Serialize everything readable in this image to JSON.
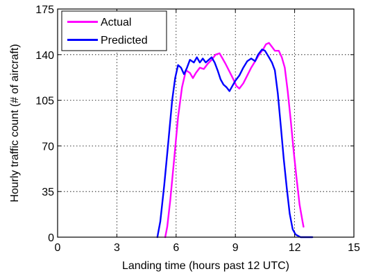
{
  "chart_data": {
    "type": "line",
    "title": "",
    "xlabel": "Landing time (hours past 12 UTC)",
    "ylabel": "Hourly traffic count (# of aircraft)",
    "xlim": [
      0,
      15
    ],
    "ylim": [
      0,
      175
    ],
    "xticks": [
      "0",
      "3",
      "6",
      "9",
      "12",
      "15"
    ],
    "yticks": [
      "0",
      "35",
      "70",
      "105",
      "140",
      "175"
    ],
    "grid": true,
    "legend_position": "top-left",
    "series": [
      {
        "name": "Actual",
        "color": "#ff00ff",
        "points": [
          [
            5.45,
            0
          ],
          [
            5.55,
            8
          ],
          [
            5.7,
            28
          ],
          [
            5.9,
            60
          ],
          [
            6.1,
            92
          ],
          [
            6.3,
            115
          ],
          [
            6.5,
            128
          ],
          [
            6.7,
            126
          ],
          [
            6.85,
            122
          ],
          [
            7.0,
            126
          ],
          [
            7.2,
            130
          ],
          [
            7.4,
            129
          ],
          [
            7.6,
            133
          ],
          [
            7.8,
            136
          ],
          [
            8.0,
            140
          ],
          [
            8.2,
            141
          ],
          [
            8.35,
            137
          ],
          [
            8.5,
            133
          ],
          [
            8.7,
            127
          ],
          [
            8.9,
            121
          ],
          [
            9.05,
            116
          ],
          [
            9.2,
            114
          ],
          [
            9.4,
            118
          ],
          [
            9.6,
            124
          ],
          [
            9.8,
            130
          ],
          [
            10.0,
            135
          ],
          [
            10.2,
            140
          ],
          [
            10.4,
            144
          ],
          [
            10.55,
            148
          ],
          [
            10.7,
            149
          ],
          [
            10.85,
            146
          ],
          [
            11.0,
            143
          ],
          [
            11.2,
            143
          ],
          [
            11.35,
            138
          ],
          [
            11.5,
            130
          ],
          [
            11.65,
            112
          ],
          [
            11.8,
            90
          ],
          [
            11.95,
            66
          ],
          [
            12.1,
            45
          ],
          [
            12.25,
            25
          ],
          [
            12.4,
            12
          ],
          [
            12.45,
            8
          ]
        ]
      },
      {
        "name": "Predicted",
        "color": "#0000ff",
        "points": [
          [
            5.05,
            0
          ],
          [
            5.2,
            12
          ],
          [
            5.4,
            40
          ],
          [
            5.6,
            72
          ],
          [
            5.8,
            105
          ],
          [
            5.95,
            122
          ],
          [
            6.1,
            132
          ],
          [
            6.25,
            130
          ],
          [
            6.4,
            125
          ],
          [
            6.55,
            130
          ],
          [
            6.7,
            136
          ],
          [
            6.9,
            134
          ],
          [
            7.05,
            138
          ],
          [
            7.2,
            134
          ],
          [
            7.35,
            137
          ],
          [
            7.5,
            134
          ],
          [
            7.65,
            136
          ],
          [
            7.8,
            138
          ],
          [
            7.95,
            134
          ],
          [
            8.1,
            128
          ],
          [
            8.25,
            121
          ],
          [
            8.4,
            117
          ],
          [
            8.55,
            115
          ],
          [
            8.7,
            112
          ],
          [
            8.85,
            116
          ],
          [
            9.0,
            120
          ],
          [
            9.2,
            124
          ],
          [
            9.4,
            130
          ],
          [
            9.6,
            135
          ],
          [
            9.8,
            137
          ],
          [
            10.0,
            135
          ],
          [
            10.15,
            140
          ],
          [
            10.35,
            144
          ],
          [
            10.5,
            143
          ],
          [
            10.7,
            138
          ],
          [
            10.85,
            134
          ],
          [
            11.0,
            128
          ],
          [
            11.15,
            110
          ],
          [
            11.3,
            85
          ],
          [
            11.45,
            60
          ],
          [
            11.6,
            38
          ],
          [
            11.75,
            18
          ],
          [
            11.9,
            6
          ],
          [
            12.05,
            2
          ],
          [
            12.3,
            0
          ],
          [
            12.9,
            0
          ]
        ]
      }
    ]
  }
}
